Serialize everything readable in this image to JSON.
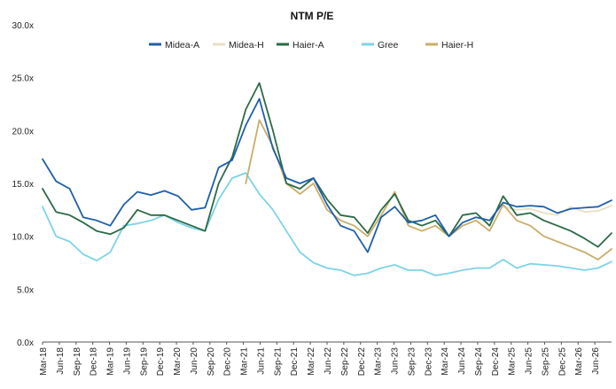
{
  "chart_data": {
    "type": "line",
    "title": "NTM P/E",
    "xlabel": "",
    "ylabel": "",
    "ylim": [
      0,
      30
    ],
    "y_ticks": [
      "0.0x",
      "5.0x",
      "10.0x",
      "15.0x",
      "20.0x",
      "25.0x",
      "30.0x"
    ],
    "x_ticks": [
      "Mar-18",
      "Jun-18",
      "Sep-18",
      "Dec-18",
      "Mar-19",
      "Jun-19",
      "Sep-19",
      "Dec-19",
      "Mar-20",
      "Jun-20",
      "Sep-20",
      "Dec-20",
      "Mar-21",
      "Jun-21",
      "Sep-21",
      "Dec-21",
      "Mar-22",
      "Jun-22",
      "Sep-22",
      "Dec-22",
      "Mar-23",
      "Jun-23",
      "Sep-23",
      "Dec-23",
      "Mar-24",
      "Jun-24",
      "Sep-24",
      "Dec-24",
      "Mar-25",
      "Jun-25",
      "Sep-25",
      "Dec-25",
      "Mar-26",
      "Jun-26"
    ],
    "grid": false,
    "legend_position": "top",
    "series": [
      {
        "name": "Midea-A",
        "color": "#1f5fa8",
        "values": [
          17.3,
          15.2,
          14.5,
          11.8,
          11.5,
          11.0,
          13.0,
          14.2,
          13.9,
          14.3,
          13.8,
          12.5,
          12.7,
          16.5,
          17.2,
          20.5,
          23.0,
          18.3,
          15.5,
          15.0,
          15.5,
          13.0,
          11.0,
          10.5,
          8.5,
          11.8,
          12.8,
          11.3,
          11.5,
          12.0,
          10.0,
          11.3,
          11.8,
          11.5,
          13.2,
          12.8,
          12.9,
          12.8,
          12.2,
          12.6,
          12.7,
          12.8,
          13.4
        ]
      },
      {
        "name": "Midea-H",
        "color": "#e8dfc4",
        "values": [
          null,
          null,
          null,
          null,
          null,
          null,
          null,
          null,
          null,
          null,
          null,
          null,
          null,
          null,
          null,
          null,
          null,
          null,
          null,
          null,
          null,
          null,
          null,
          null,
          null,
          null,
          null,
          null,
          null,
          null,
          null,
          null,
          null,
          null,
          12.8,
          12.5,
          12.6,
          12.2,
          12.0,
          12.8,
          12.3,
          12.4,
          12.9
        ]
      },
      {
        "name": "Haier-A",
        "color": "#2a6b47",
        "values": [
          14.5,
          12.3,
          12.0,
          11.3,
          10.5,
          10.2,
          10.8,
          12.5,
          12.0,
          12.0,
          11.5,
          11.0,
          10.5,
          15.0,
          17.5,
          22.0,
          24.5,
          20.0,
          15.0,
          14.5,
          15.5,
          13.5,
          12.0,
          11.8,
          10.3,
          12.5,
          14.0,
          11.5,
          11.0,
          11.5,
          10.0,
          12.0,
          12.2,
          11.0,
          13.8,
          12.0,
          12.2,
          11.5,
          11.0,
          10.5,
          9.8,
          9.0,
          10.3
        ]
      },
      {
        "name": "Gree",
        "color": "#7dd3e8",
        "values": [
          12.8,
          10.0,
          9.5,
          8.3,
          7.7,
          8.5,
          11.0,
          11.2,
          11.5,
          12.0,
          11.3,
          10.8,
          10.5,
          13.5,
          15.5,
          16.0,
          14.0,
          12.5,
          10.5,
          8.5,
          7.5,
          7.0,
          6.8,
          6.3,
          6.5,
          7.0,
          7.3,
          6.8,
          6.8,
          6.3,
          6.5,
          6.8,
          7.0,
          7.0,
          7.8,
          7.0,
          7.4,
          7.3,
          7.2,
          7.0,
          6.8,
          7.0,
          7.6
        ]
      },
      {
        "name": "Haier-H",
        "color": "#c9ad6a",
        "values": [
          null,
          null,
          null,
          null,
          null,
          null,
          null,
          null,
          null,
          null,
          null,
          null,
          null,
          null,
          null,
          15.0,
          21.0,
          18.5,
          15.0,
          14.0,
          15.0,
          12.5,
          11.5,
          11.0,
          10.0,
          12.0,
          14.2,
          11.0,
          10.5,
          11.0,
          10.0,
          11.0,
          11.5,
          10.5,
          13.0,
          11.5,
          11.0,
          10.0,
          9.5,
          9.0,
          8.5,
          7.8,
          8.8
        ]
      }
    ]
  }
}
